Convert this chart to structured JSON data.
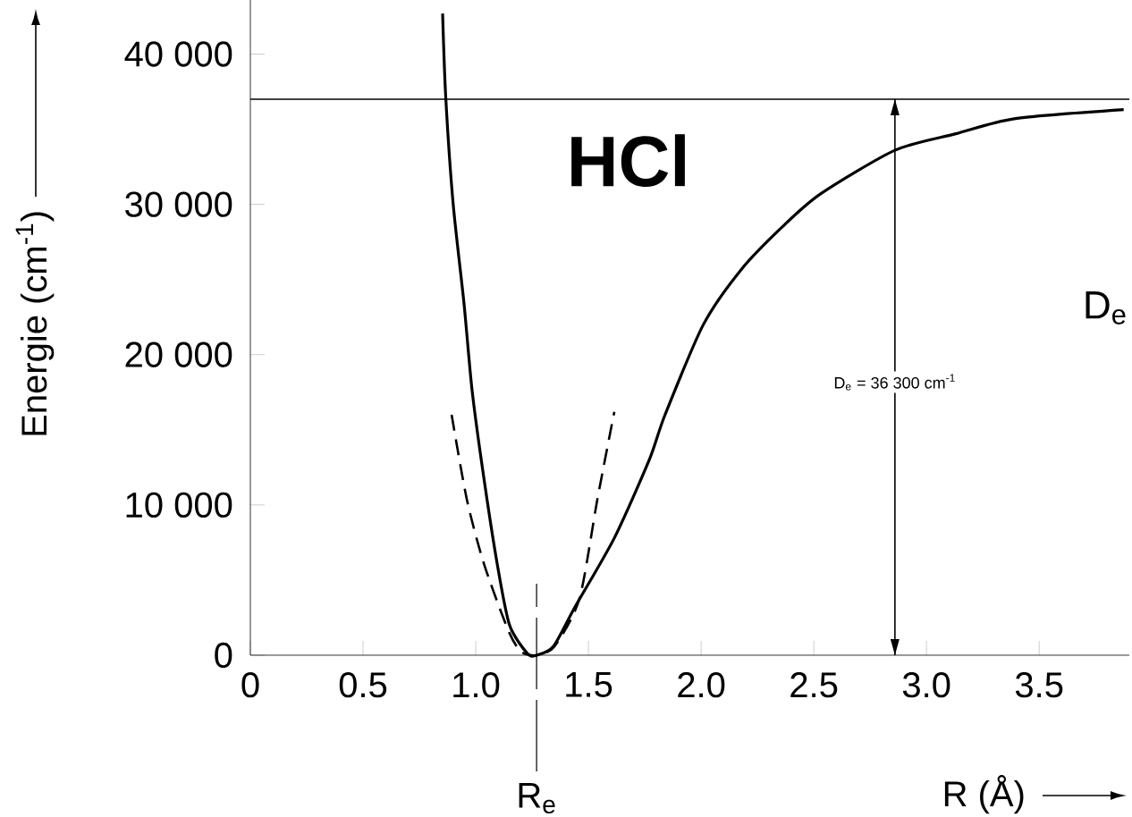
{
  "chart_data": {
    "type": "line",
    "title": "HCl",
    "xlabel": "R (Å)",
    "ylabel": "Energie (cm$^{-1}$)",
    "xlim": [
      0,
      3.9
    ],
    "ylim": [
      0,
      43600
    ],
    "xticks": [
      0,
      0.5,
      {
        "value": 1,
        "label": "1.0"
      },
      1.5,
      {
        "value": 2,
        "label": "2.0"
      },
      2.5,
      {
        "value": 3,
        "label": "3.0"
      },
      3.5
    ],
    "yticks": [
      0,
      {
        "value": 10000,
        "label": "10 000"
      },
      {
        "value": 20000,
        "label": "20 000"
      },
      {
        "value": 30000,
        "label": "30 000"
      },
      {
        "value": 40000,
        "label": "40 000"
      }
    ],
    "grid": false,
    "marker": "none",
    "series": [
      {
        "color": "#000000",
        "line_style": "solid",
        "x": [
          0.853,
          0.867,
          0.9,
          0.948,
          0.984,
          1.036,
          1.095,
          1.15,
          1.23,
          1.27,
          1.345,
          1.44,
          1.615,
          1.77,
          1.84,
          2.01,
          2.18,
          2.36,
          2.53,
          2.86,
          3.13,
          3.39,
          3.875
        ],
        "values": [
          42700,
          37100,
          30000,
          23400,
          17600,
          11800,
          6100,
          2000,
          100,
          0,
          600,
          3200,
          7800,
          13000,
          16000,
          22000,
          25700,
          28500,
          30700,
          33600,
          34700,
          35700,
          36300
        ]
      },
      {
        "color": "#000000",
        "line_style": "dashed",
        "x": [
          0.893,
          0.96,
          1.036,
          1.143,
          1.2,
          1.27,
          1.35,
          1.46,
          1.54,
          1.615
        ],
        "values": [
          16000,
          10400,
          6100,
          1700,
          250,
          0,
          600,
          3750,
          10400,
          16200
        ]
      }
    ],
    "ref_lines": [
      {
        "axis": "y",
        "value": 37000,
        "color": "#000000"
      },
      {
        "axis": "x",
        "value": 1.27,
        "label": "R$_{e}$",
        "color": "#000000",
        "line_style": "dashed"
      },
      {
        "axis": "x",
        "value": 2.86,
        "color": "#000000",
        "line_style": "solid"
      }
    ],
    "annotations": [
      "D$_{e}$ = 36 300 cm$^{-1}$",
      "D$_{e}$"
    ]
  }
}
